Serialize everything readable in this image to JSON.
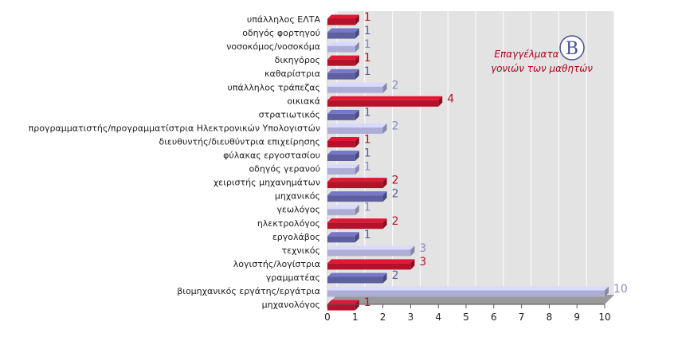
{
  "chart_data": {
    "type": "bar",
    "orientation": "horizontal",
    "categories": [
      "υπάλληλος ΕΛΤΑ",
      "οδηγός φορτηγού",
      "νοσοκόμος/νοσοκόμα",
      "δικηγόρος",
      "καθαρίστρια",
      "υπάλληλος τράπεζας",
      "οικιακά",
      "στρατιωτικός",
      "προγραμματιστής/προγραμματίστρια Ηλεκτρονικών Υπολογιστών",
      "διευθυντής/διευθύντρια επιχείρησης",
      "φύλακας εργοστασίου",
      "οδηγός γερανού",
      "χειριστής μηχανημάτων",
      "μηχανικός",
      "γεωλόγος",
      "ηλεκτρολόγος",
      "εργολάβος",
      "τεχνικός",
      "λογιστής/λογίστρια",
      "γραμματέας",
      "βιομηχανικός εργάτης/εργάτρια",
      "μηχανολόγος"
    ],
    "values": [
      1,
      1,
      1,
      1,
      1,
      2,
      4,
      1,
      2,
      1,
      1,
      1,
      2,
      2,
      1,
      2,
      1,
      3,
      3,
      2,
      10,
      1
    ],
    "bar_colors": [
      "red",
      "blue",
      "light",
      "red",
      "blue",
      "light",
      "red",
      "blue",
      "light",
      "red",
      "blue",
      "light",
      "red",
      "blue",
      "light",
      "red",
      "blue",
      "light",
      "red",
      "blue",
      "light",
      "red"
    ],
    "xlim": [
      0,
      10
    ],
    "xticks": [
      "0",
      "1",
      "2",
      "3",
      "4",
      "5",
      "6",
      "7",
      "8",
      "9",
      "10"
    ],
    "title": "Επαγγέλματα γονιών των μαθητών",
    "title_lines": [
      "Επαγγέλματα",
      "γονιών των μαθητών"
    ],
    "logo_letter": "B",
    "grid": true,
    "legend": "none",
    "colors": {
      "red": "#b3122a",
      "blue": "#5e5f9e",
      "light": "#adaed6",
      "value_red": "#b3122a",
      "value_blue": "#5e5f9e",
      "value_light": "#8a8cc2",
      "panel": "#e3e3e3",
      "grid": "#ffffff",
      "floor": "#9a9a9a"
    }
  }
}
